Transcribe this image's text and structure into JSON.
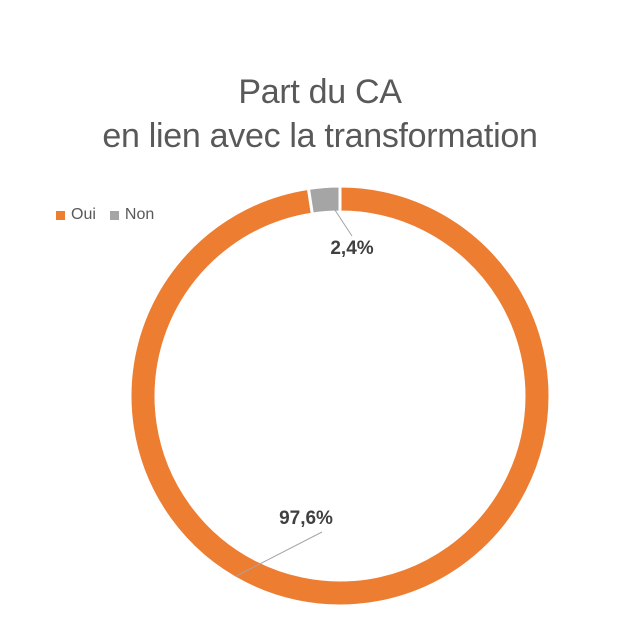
{
  "chart_data": {
    "type": "pie",
    "subtype": "donut",
    "title_lines": [
      "Part du CA",
      "en lien avec la transformation"
    ],
    "categories": [
      "Oui",
      "Non"
    ],
    "values": [
      97.6,
      2.4
    ],
    "labels": [
      "97,6%",
      "2,4%"
    ],
    "colors": [
      "#ED7D31",
      "#A5A5A5"
    ],
    "legend_position": "top-left",
    "start_angle_deg": 0,
    "direction": "clockwise"
  }
}
